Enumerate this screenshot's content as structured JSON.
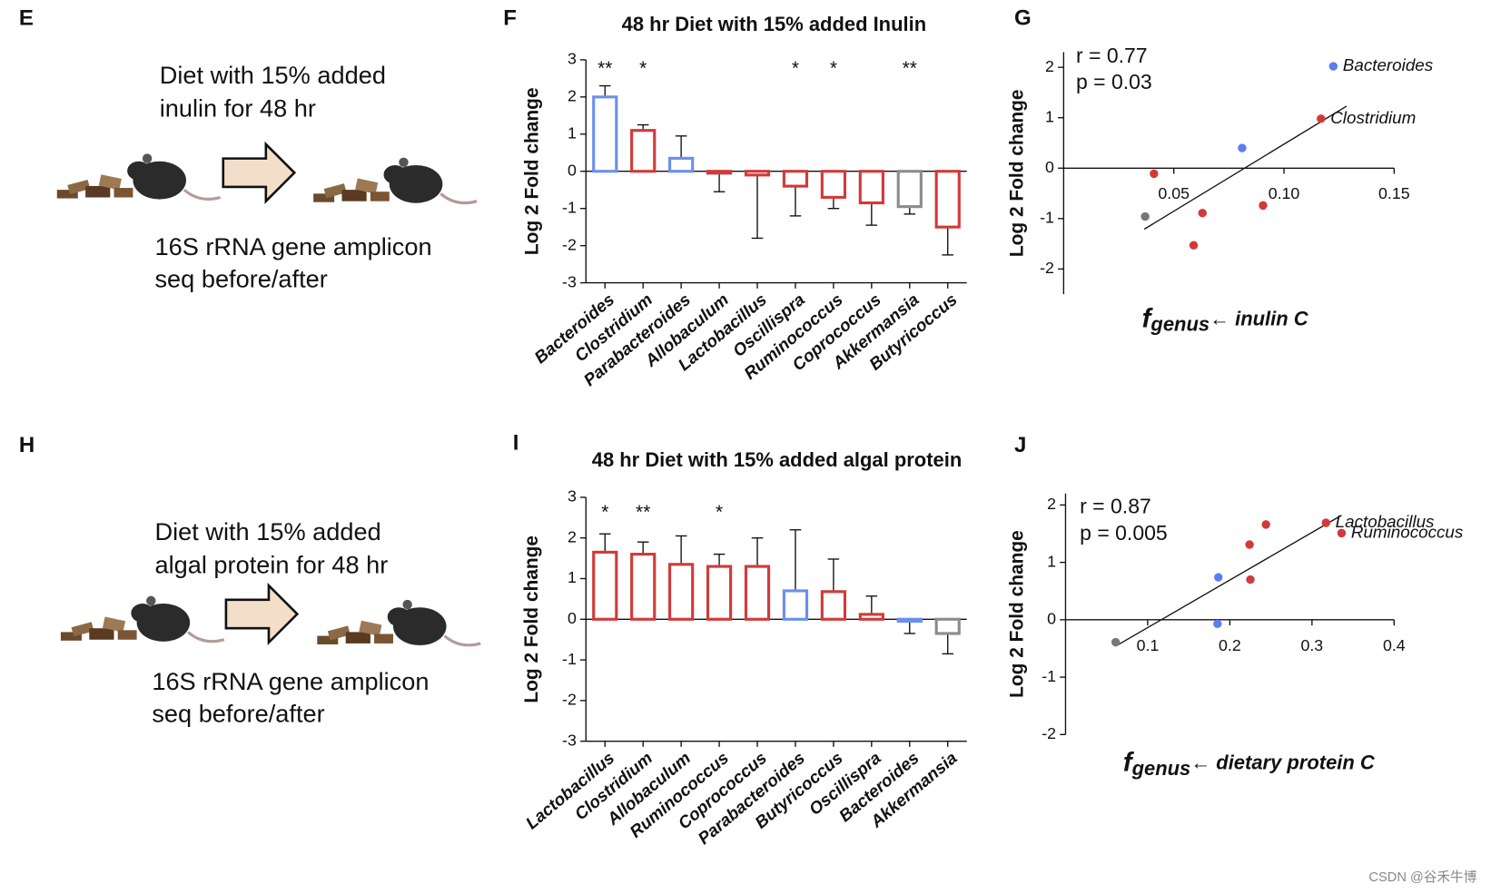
{
  "diagrams": [
    {
      "label": "E",
      "lines": [
        "Diet with 15% added",
        "inulin for 48 hr",
        "16S rRNA gene amplicon",
        "seq before/after"
      ]
    },
    {
      "label": "H",
      "lines": [
        "Diet with 15% added",
        "algal protein for 48 hr",
        "16S rRNA gene amplicon",
        "seq before/after"
      ]
    }
  ],
  "chart_data": [
    {
      "type": "bar",
      "label": "F",
      "title": "48 hr Diet with 15% added Inulin",
      "ylabel": "Log 2 Fold change",
      "categories": [
        "Bacteroides",
        "Clostridium",
        "Parabacteroides",
        "Allobaculum",
        "Lactobacillus",
        "Oscillispra",
        "Ruminococcus",
        "Coprococcus",
        "Akkermansia",
        "Butyricoccus"
      ],
      "values": [
        2.0,
        1.1,
        0.35,
        -0.05,
        -0.1,
        -0.4,
        -0.7,
        -0.85,
        -0.95,
        -1.5
      ],
      "errors": [
        0.3,
        0.15,
        0.6,
        0.5,
        1.7,
        0.8,
        0.3,
        0.6,
        0.2,
        0.75
      ],
      "colors": [
        "#6b8ff0",
        "#d13a3a",
        "#6b8ff0",
        "#d13a3a",
        "#d13a3a",
        "#d13a3a",
        "#d13a3a",
        "#d13a3a",
        "#8c8c8c",
        "#d13a3a"
      ],
      "significance": [
        "**",
        "*",
        null,
        null,
        null,
        "*",
        "*",
        null,
        "**",
        null
      ],
      "ylim": [
        -3,
        3
      ],
      "yticks": [
        -3,
        -2,
        -1,
        0,
        1,
        2,
        3
      ]
    },
    {
      "type": "scatter",
      "label": "G",
      "annotations": [
        "r = 0.77",
        "p = 0.03"
      ],
      "ylabel": "Log 2 Fold change",
      "xlabel": {
        "main": "f",
        "sub": "genus",
        "rest": "← inulin C"
      },
      "x": [
        0.1224,
        0.1168,
        0.081,
        0.041,
        0.037,
        0.063,
        0.0905,
        0.059
      ],
      "y": [
        2.02,
        0.98,
        0.4,
        -0.11,
        -0.96,
        -0.89,
        -0.74,
        -1.53
      ],
      "colors": [
        "#5b7ff0",
        "#d13a3a",
        "#5b7ff0",
        "#d13a3a",
        "#777777",
        "#d13a3a",
        "#d13a3a",
        "#d13a3a"
      ],
      "point_labels": [
        "Bacteroides",
        "Clostridium",
        null,
        null,
        null,
        null,
        null,
        null
      ],
      "fit": {
        "x": [
          0.0366,
          0.1284
        ],
        "y": [
          -1.21,
          1.23
        ]
      },
      "xlim": [
        0,
        0.15
      ],
      "xticks": [
        0.05,
        {
          "value": 0.1,
          "label": "0.10"
        },
        0.15
      ],
      "ylim": [
        -2.5,
        2.3
      ],
      "yticks": [
        -2,
        -1,
        0,
        1,
        2
      ]
    },
    {
      "type": "bar",
      "label": "I",
      "title": "48 hr Diet with 15% added algal protein",
      "ylabel": "Log 2 Fold change",
      "categories": [
        "Lactobacillus",
        "Clostridium",
        "Allobaculum",
        "Ruminococcus",
        "Coprococcus",
        "Parabacteroides",
        "Butyricoccus",
        "Oscillispra",
        "Bacteroides",
        "Akkermansia"
      ],
      "values": [
        1.65,
        1.6,
        1.35,
        1.3,
        1.3,
        0.7,
        0.68,
        0.12,
        -0.05,
        -0.35
      ],
      "errors": [
        0.45,
        0.3,
        0.7,
        0.3,
        0.7,
        1.5,
        0.8,
        0.45,
        0.3,
        0.5
      ],
      "colors": [
        "#d13a3a",
        "#d13a3a",
        "#d13a3a",
        "#d13a3a",
        "#d13a3a",
        "#6b8ff0",
        "#d13a3a",
        "#d13a3a",
        "#6b8ff0",
        "#8c8c8c"
      ],
      "significance": [
        "*",
        "**",
        null,
        "*",
        null,
        null,
        null,
        null,
        null,
        null
      ],
      "ylim": [
        -3,
        3
      ],
      "yticks": [
        -3,
        -2,
        -1,
        0,
        1,
        2,
        3
      ]
    },
    {
      "type": "scatter",
      "label": "J",
      "annotations": [
        "r = 0.87",
        "p = 0.005"
      ],
      "ylabel": "Log 2 Fold change",
      "xlabel": {
        "main": "f",
        "sub": "genus",
        "rest": "← dietary protein C"
      },
      "x": [
        0.317,
        0.336,
        0.244,
        0.224,
        0.225,
        0.186,
        0.185,
        0.061
      ],
      "y": [
        1.69,
        1.51,
        1.66,
        1.31,
        0.7,
        0.74,
        -0.07,
        -0.39
      ],
      "colors": [
        "#d13a3a",
        "#d13a3a",
        "#d13a3a",
        "#d13a3a",
        "#d13a3a",
        "#5b7ff0",
        "#5b7ff0",
        "#777777"
      ],
      "point_labels": [
        "Lactobacillus",
        "Ruminococcus",
        null,
        null,
        null,
        null,
        null,
        null
      ],
      "fit": {
        "x": [
          0.061,
          0.336
        ],
        "y": [
          -0.46,
          1.82
        ]
      },
      "xlim": [
        0,
        0.4
      ],
      "xticks": [
        0.1,
        0.2,
        0.3,
        0.4
      ],
      "ylim": [
        -2,
        2.2
      ],
      "yticks": [
        -2,
        -1,
        0,
        1,
        2
      ]
    }
  ],
  "watermark": "CSDN @谷禾牛博"
}
